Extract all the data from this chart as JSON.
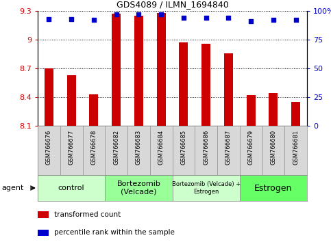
{
  "title": "GDS4089 / ILMN_1694840",
  "samples": [
    "GSM766676",
    "GSM766677",
    "GSM766678",
    "GSM766682",
    "GSM766683",
    "GSM766684",
    "GSM766685",
    "GSM766686",
    "GSM766687",
    "GSM766679",
    "GSM766680",
    "GSM766681"
  ],
  "bar_values": [
    8.7,
    8.63,
    8.43,
    9.27,
    9.25,
    9.28,
    8.97,
    8.96,
    8.86,
    8.42,
    8.44,
    8.35
  ],
  "percentile_values": [
    93,
    93,
    92,
    97,
    97,
    97,
    94,
    94,
    94,
    91,
    92,
    92
  ],
  "bar_color": "#cc0000",
  "dot_color": "#0000cc",
  "ylim_left": [
    8.1,
    9.3
  ],
  "ylim_right": [
    0,
    100
  ],
  "yticks_left": [
    8.1,
    8.4,
    8.7,
    9.0,
    9.3
  ],
  "yticks_right": [
    0,
    25,
    50,
    75,
    100
  ],
  "ytick_labels_left": [
    "8.1",
    "8.4",
    "8.7",
    "9",
    "9.3"
  ],
  "ytick_labels_right": [
    "0",
    "25",
    "50",
    "75",
    "100%"
  ],
  "groups": [
    {
      "label": "control",
      "start": 0,
      "end": 3,
      "color": "#ccffcc",
      "fontsize": 8
    },
    {
      "label": "Bortezomib\n(Velcade)",
      "start": 3,
      "end": 6,
      "color": "#99ff99",
      "fontsize": 8
    },
    {
      "label": "Bortezomib (Velcade) +\nEstrogen",
      "start": 6,
      "end": 9,
      "color": "#ccffcc",
      "fontsize": 6
    },
    {
      "label": "Estrogen",
      "start": 9,
      "end": 12,
      "color": "#66ff66",
      "fontsize": 9
    }
  ],
  "agent_label": "agent",
  "legend_bar_label": "transformed count",
  "legend_dot_label": "percentile rank within the sample",
  "bar_bottom": 8.1,
  "grid_color": "#000000",
  "bg_color": "#d8d8d8",
  "plot_bg_color": "#ffffff",
  "sample_box_color": "#d8d8d8",
  "bar_width": 0.4
}
